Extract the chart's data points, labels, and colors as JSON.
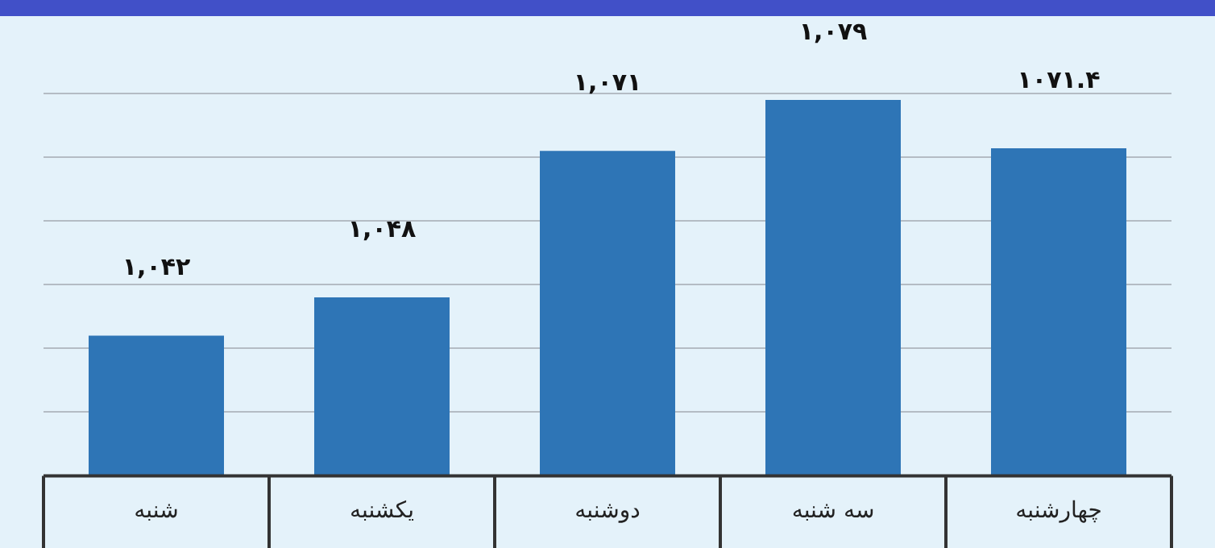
{
  "chart_data": {
    "type": "bar",
    "categories": [
      "شنبه",
      "یکشنبه",
      "دوشنبه",
      "سه شنبه",
      "چهارشنبه"
    ],
    "values": [
      1042,
      1048,
      1071,
      1079,
      1071.4
    ],
    "value_labels": [
      "۱,۰۴۲",
      "۱,۰۴۸",
      "۱,۰۷۱",
      "۱,۰۷۹",
      "۱۰۷۱.۴"
    ],
    "color": "#2e75b6",
    "ylim": [
      1020,
      1080
    ],
    "yticks": [
      {
        "value": 1030,
        "label": null
      },
      {
        "value": 1040,
        "label": null
      },
      {
        "value": 1050,
        "label": null
      },
      {
        "value": 1060,
        "label": null
      },
      {
        "value": 1070,
        "label": null
      },
      {
        "value": 1080,
        "label": null
      }
    ],
    "grid": "y",
    "tick_labels": "x",
    "legend": false
  }
}
